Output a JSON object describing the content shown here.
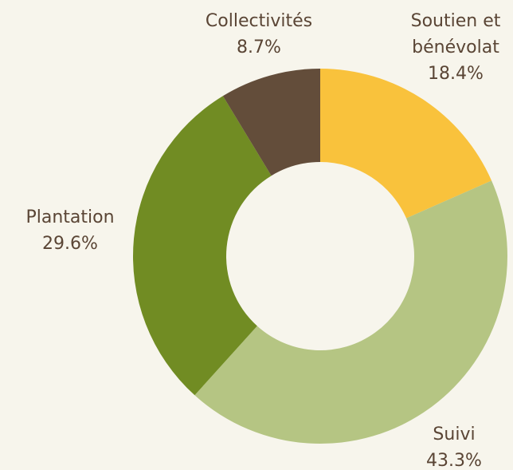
{
  "chart_data": {
    "type": "donut",
    "categories": [
      "Soutien et bénévolat",
      "Suivi",
      "Plantation",
      "Collectivités"
    ],
    "values": [
      18.4,
      43.3,
      29.6,
      8.7
    ],
    "value_labels": [
      "18.4%",
      "43.3%",
      "29.6%",
      "8.7%"
    ],
    "colors": [
      "#f9c23c",
      "#b5c583",
      "#718c23",
      "#634d3a"
    ]
  }
}
